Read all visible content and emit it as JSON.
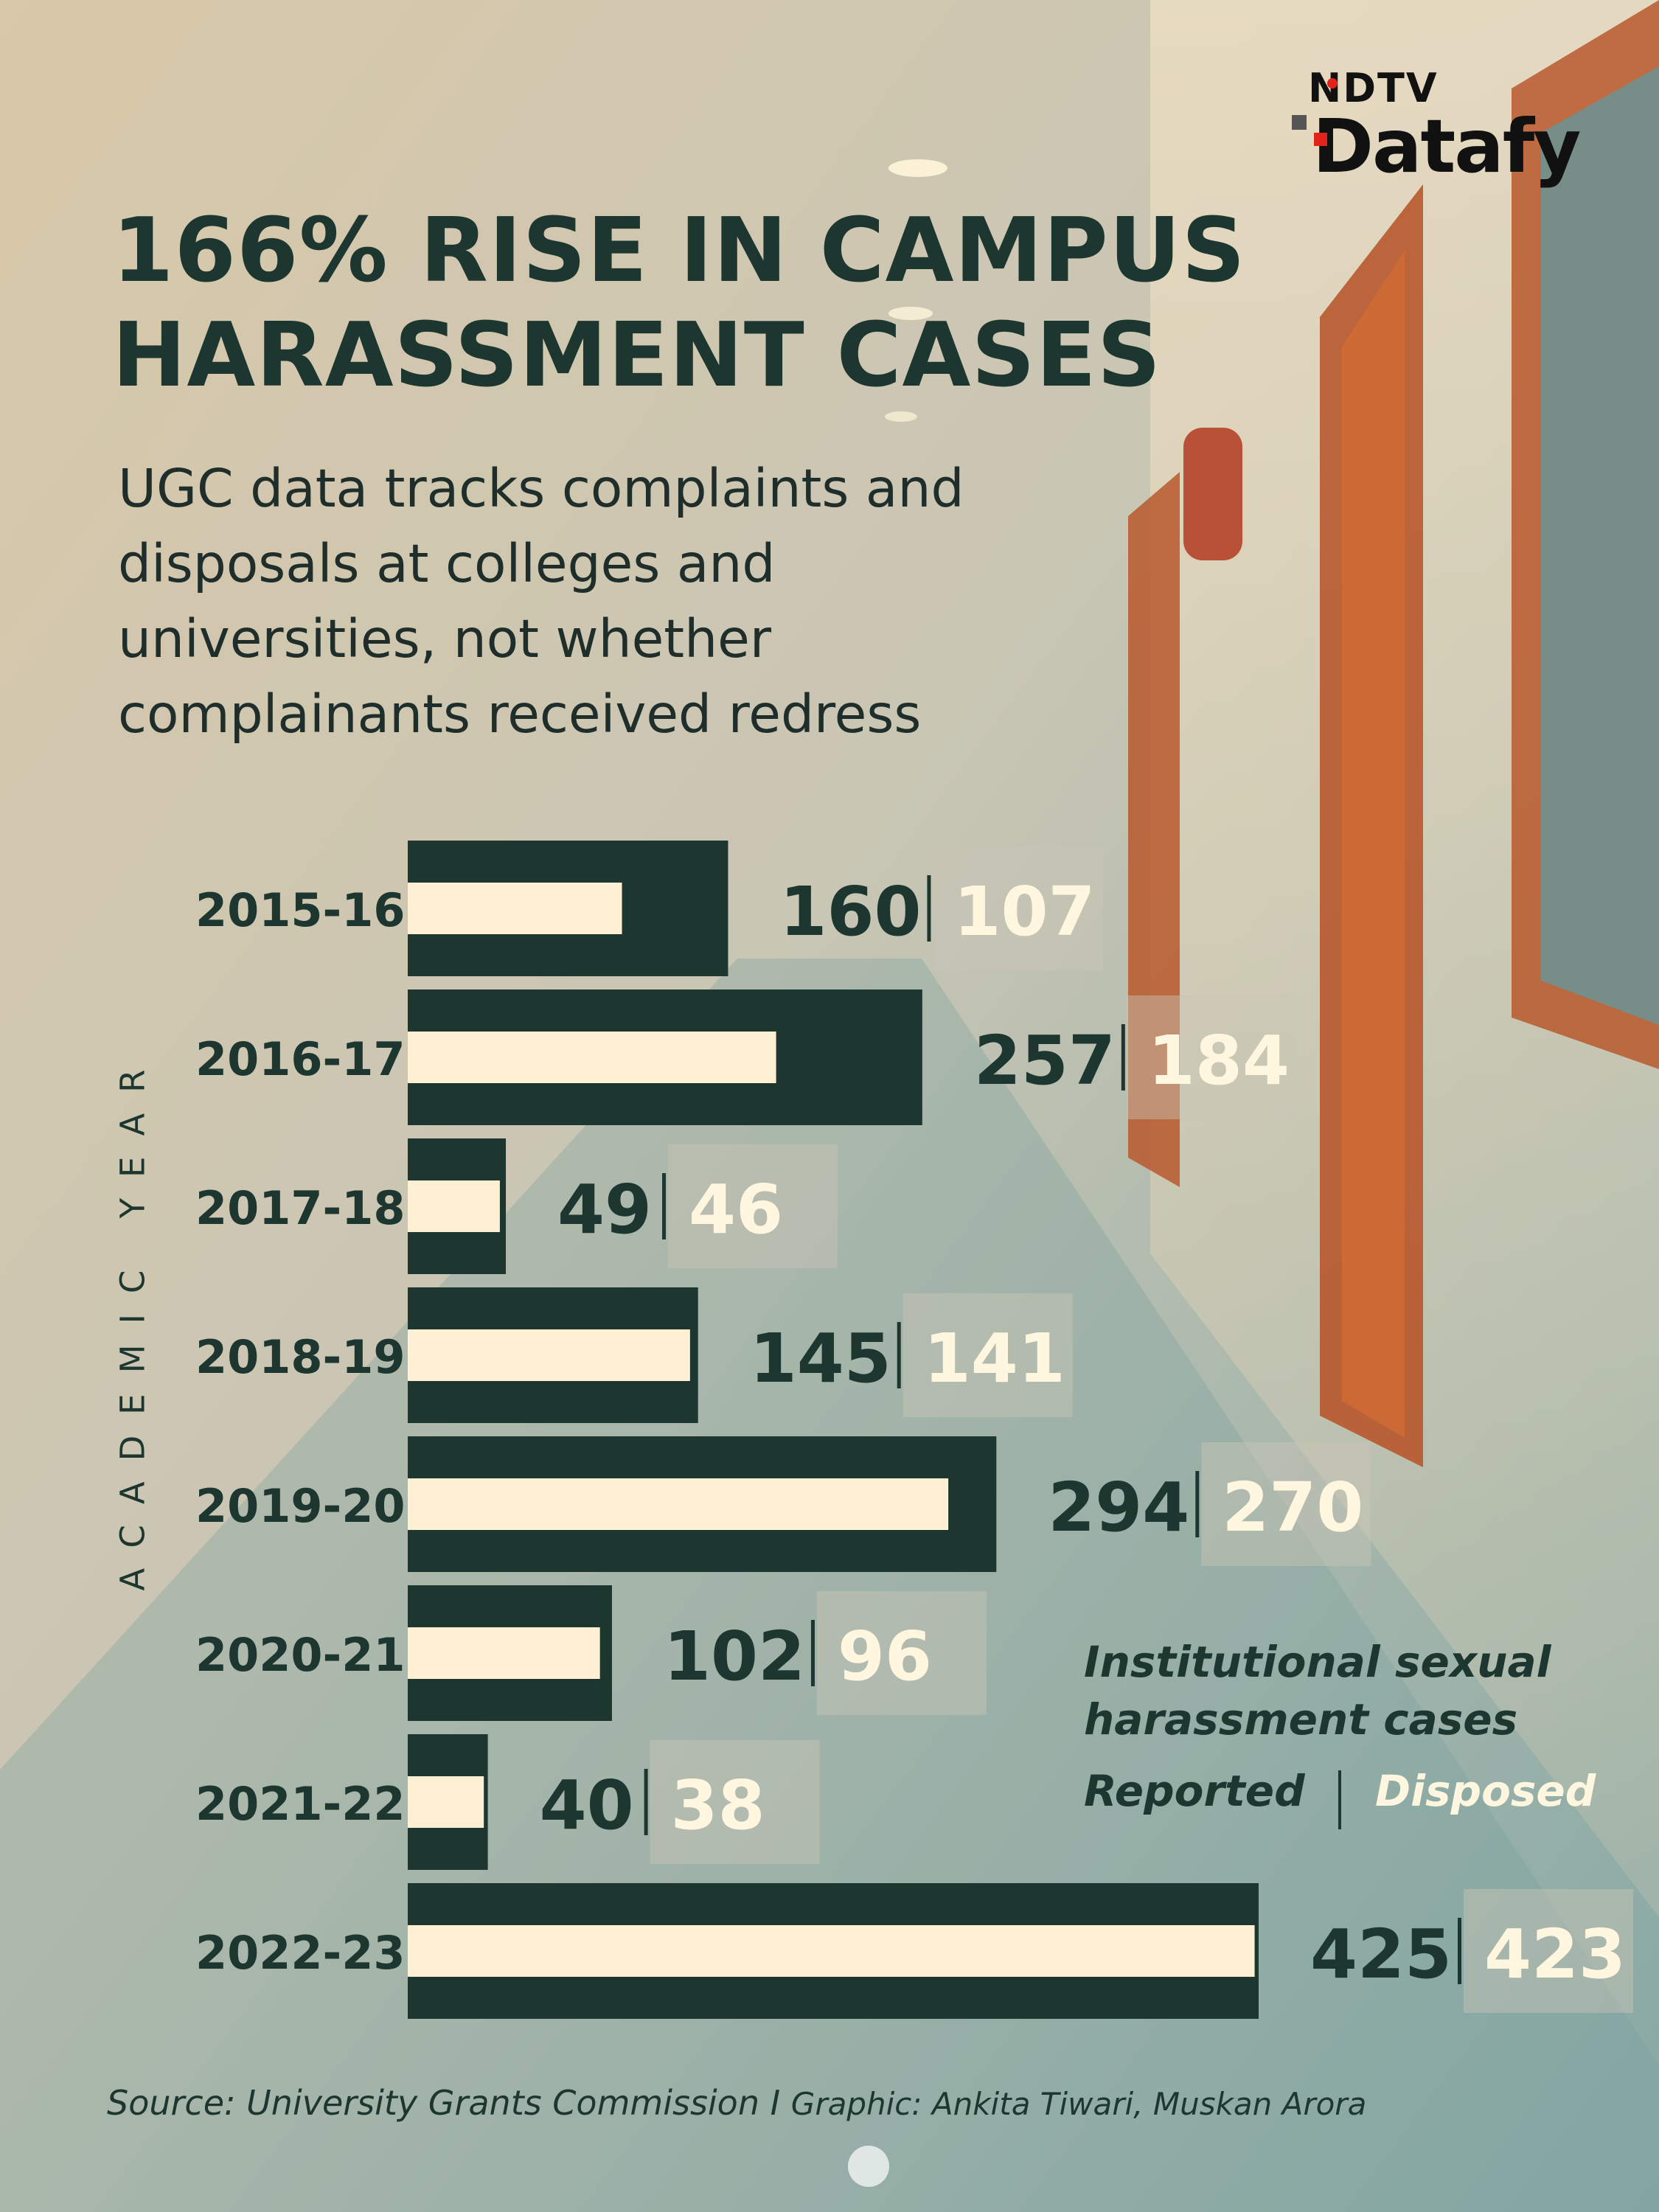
{
  "brand": {
    "top": "NDTV",
    "bottom": "Datafy"
  },
  "title": "166% RISE IN CAMPUS HARASSMENT CASES",
  "subtitle": "UGC data tracks complaints and disposals at colleges and universities, not whether complainants received redress",
  "source": "Source: University Grants Commission I",
  "credit": "Graphic: Ankita Tiwari, Muskan Arora",
  "legend": {
    "title": "Institutional sexual harassment cases",
    "reported": "Reported",
    "disposed": "Disposed"
  },
  "colors": {
    "reported_bar": "#1d3630",
    "disposed_bar": "#fff0d4",
    "reported_text": "#1d3630",
    "disposed_text": "#fff6df",
    "background_warm": "#d8c7a8",
    "background_cool": "#7fa3a0",
    "brand_red": "#e2231a"
  },
  "chart_data": {
    "type": "bar",
    "orientation": "horizontal",
    "ylabel": "ACADEMIC YEAR",
    "categories": [
      "2015-16",
      "2016-17",
      "2017-18",
      "2018-19",
      "2019-20",
      "2020-21",
      "2021-22",
      "2022-23"
    ],
    "series": [
      {
        "name": "Reported",
        "values": [
          160,
          257,
          49,
          145,
          294,
          102,
          40,
          425
        ]
      },
      {
        "name": "Disposed",
        "values": [
          107,
          184,
          46,
          141,
          270,
          96,
          38,
          423
        ]
      }
    ]
  }
}
